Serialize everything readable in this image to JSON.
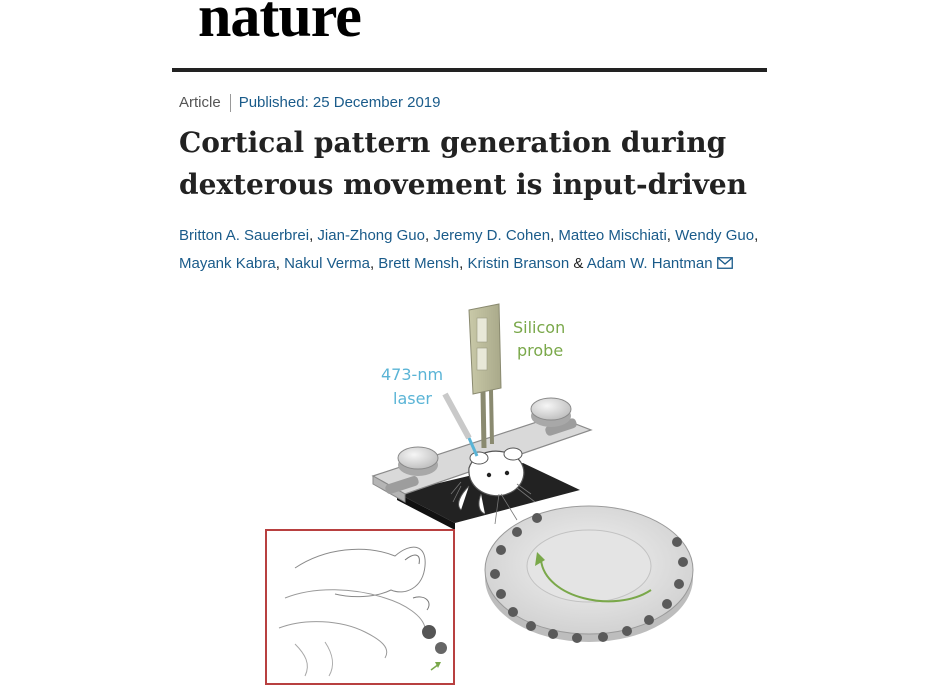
{
  "journal": {
    "name": "nature"
  },
  "article": {
    "type": "Article",
    "published": "Published: 25 December 2019",
    "title_line1": "Cortical pattern generation during",
    "title_line2": "dexterous movement is input-driven"
  },
  "authors": [
    {
      "name": "Britton A. Sauerbrei",
      "sep": ", "
    },
    {
      "name": "Jian-Zhong Guo",
      "sep": ", "
    },
    {
      "name": "Jeremy D. Cohen",
      "sep": ", "
    },
    {
      "name": "Matteo Mischiati",
      "sep": ", "
    },
    {
      "name": "Wendy Guo",
      "sep": ", "
    },
    {
      "name": "Mayank Kabra",
      "sep": ", "
    },
    {
      "name": "Nakul Verma",
      "sep": ", "
    },
    {
      "name": "Brett Mensh",
      "sep": ", "
    },
    {
      "name": "Kristin Branson",
      "sep": " & "
    },
    {
      "name": "Adam W. Hantman",
      "sep": ""
    }
  ],
  "figure": {
    "probe_label_line1": "Silicon",
    "probe_label_line2": "probe",
    "laser_label_line1": "473-nm",
    "laser_label_line2": "laser",
    "colors": {
      "probe_label": "#7aa84a",
      "laser_label": "#5ab4d6",
      "inset_border": "#b84040",
      "arrow": "#7aa84a"
    }
  }
}
